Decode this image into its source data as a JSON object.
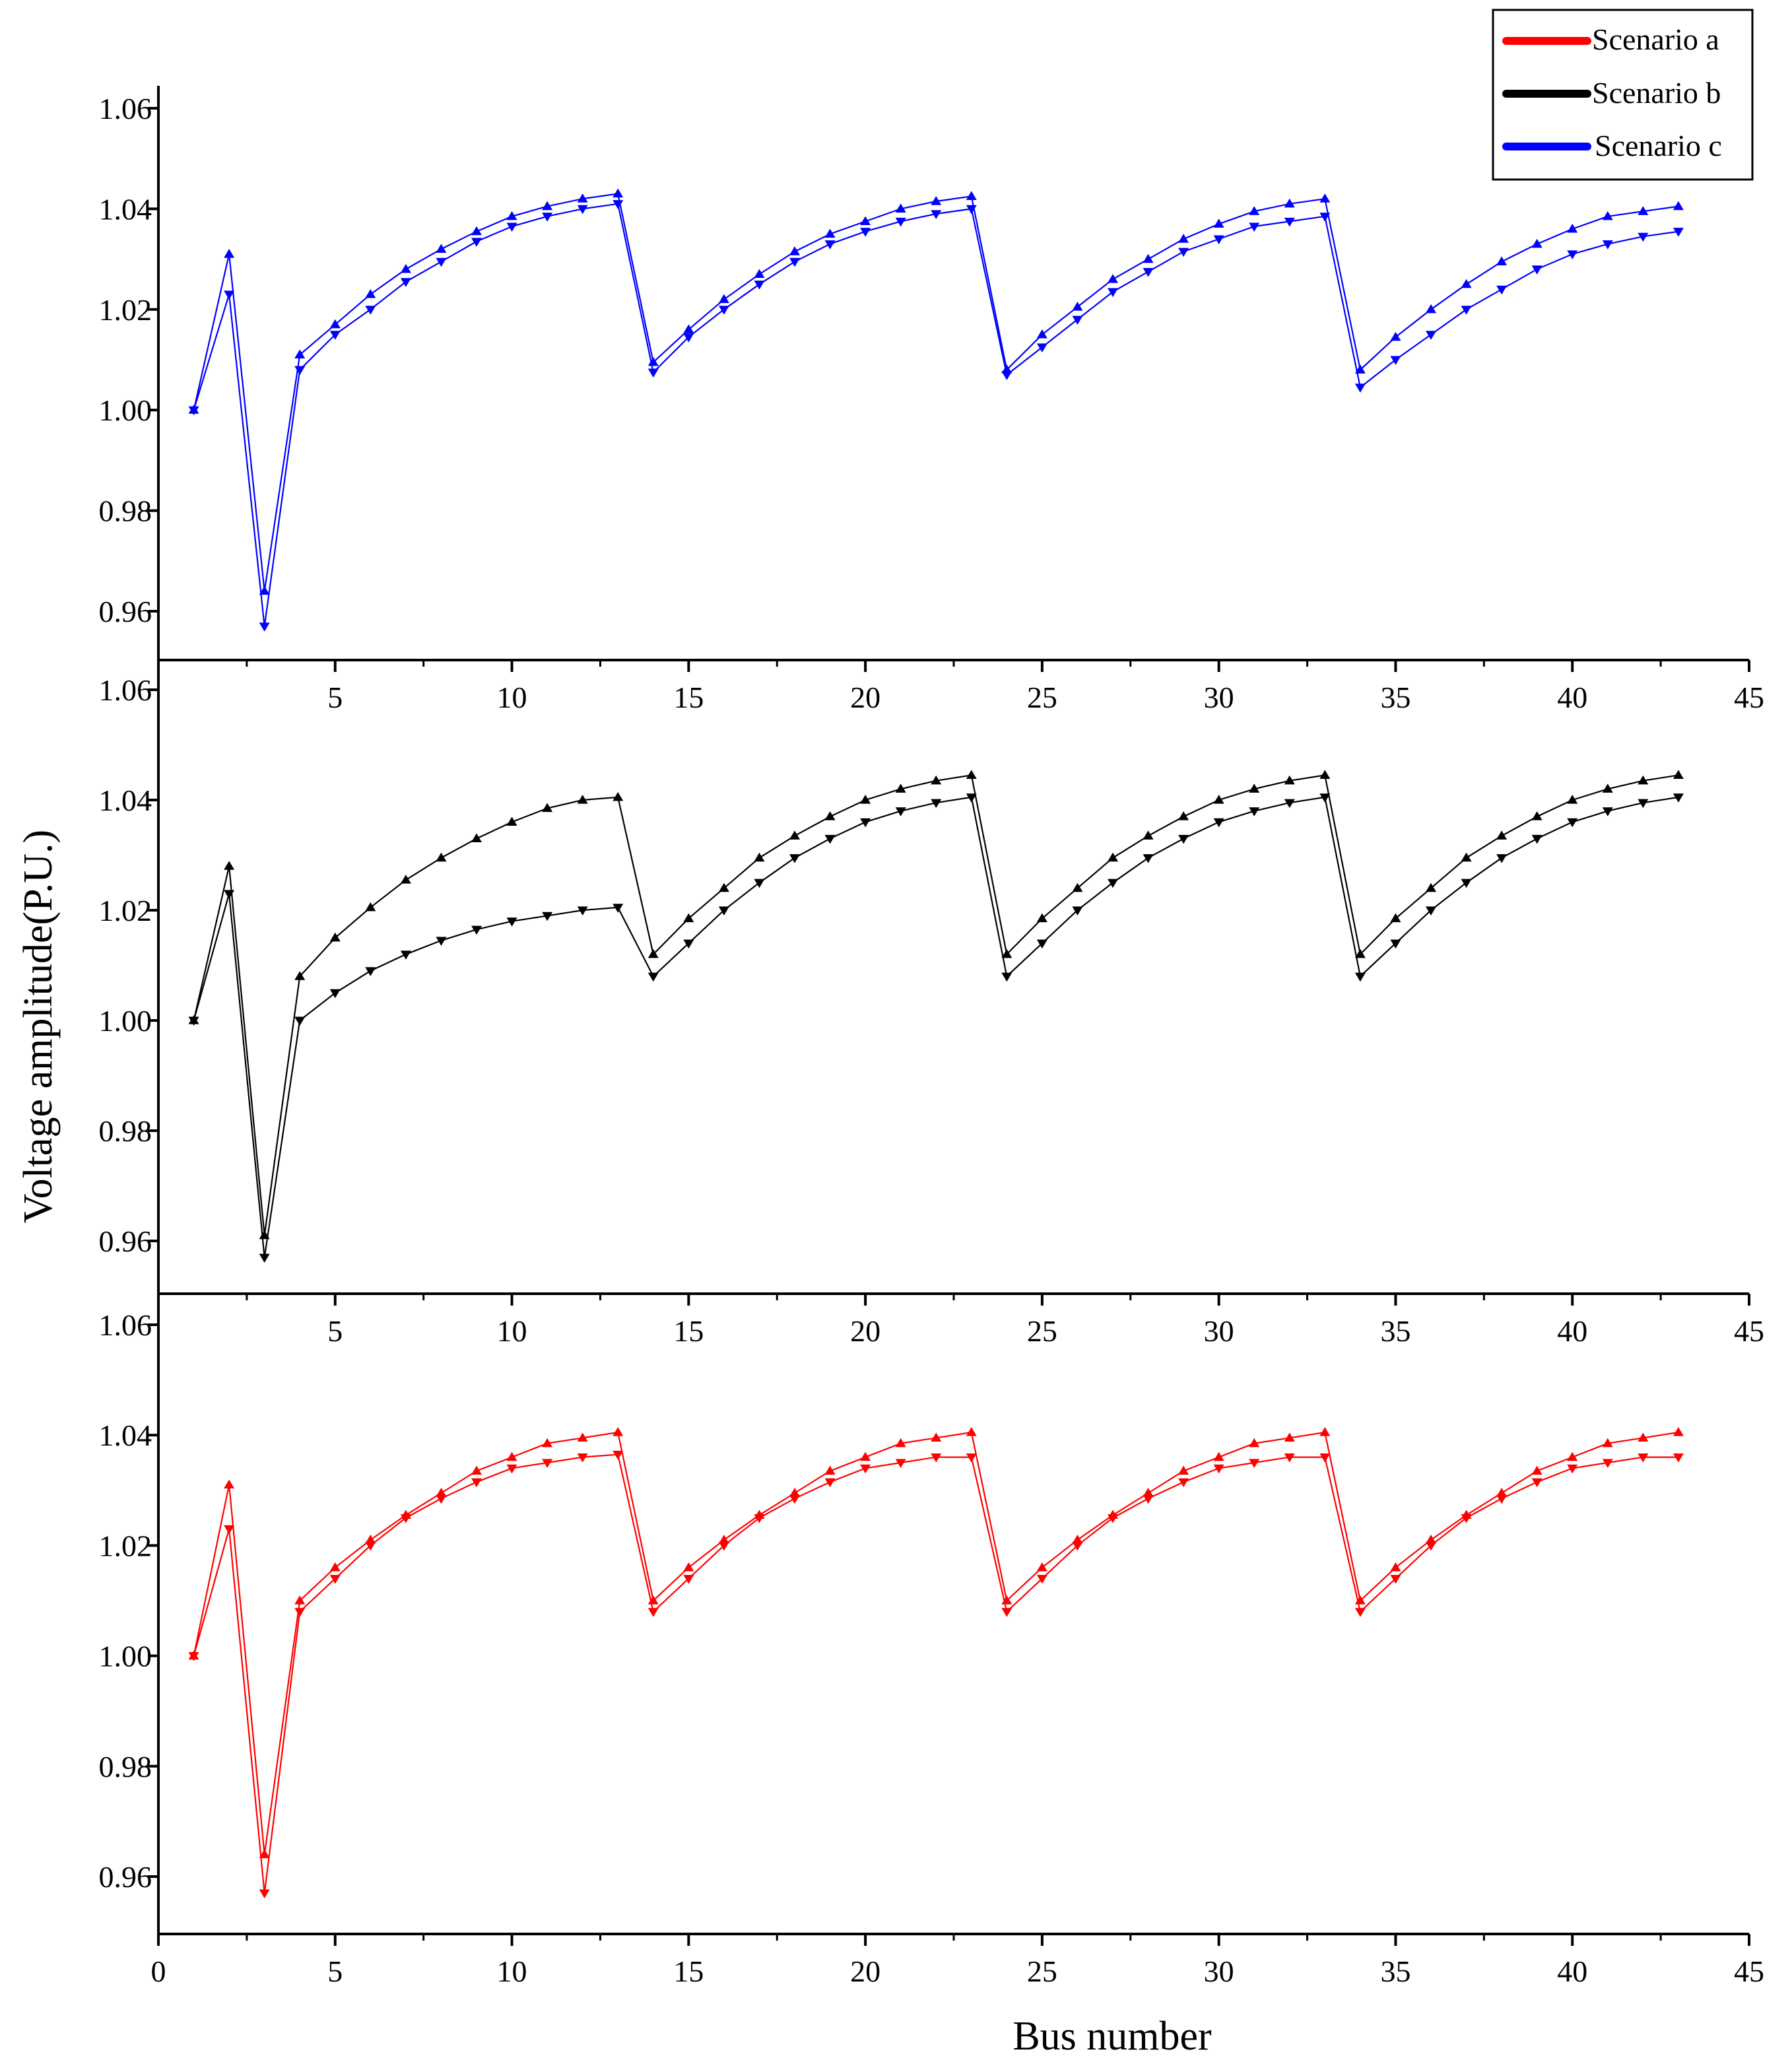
{
  "chart_data": {
    "type": "line",
    "title": "",
    "xlabel": "Bus number",
    "ylabel": "Voltage amplitude(P.U.)",
    "xlim": [
      0,
      45
    ],
    "ylim": [
      0.95,
      1.065
    ],
    "x_ticks": [
      5,
      10,
      15,
      20,
      25,
      30,
      35,
      40,
      45
    ],
    "x_ticks_bottom": [
      0,
      5,
      10,
      15,
      20,
      25,
      30,
      35,
      40,
      45
    ],
    "y_ticks": [
      0.96,
      0.98,
      1.0,
      1.02,
      1.04,
      1.06
    ],
    "y_tick_labels": [
      "0.96",
      "0.98",
      "1.00",
      "1.02",
      "1.04",
      "1.06"
    ],
    "legend": {
      "position": "top-right",
      "entries": [
        {
          "label": "Scenario a",
          "color": "#ff0000"
        },
        {
          "label": "Scenario b",
          "color": "#000000"
        },
        {
          "label": "Scenario c",
          "color": "#0000ff"
        }
      ]
    },
    "panels": [
      {
        "scenario": "c",
        "color": "#0000ff",
        "x": [
          1,
          2,
          3,
          4,
          5,
          6,
          7,
          8,
          9,
          10,
          11,
          12,
          13,
          14,
          15,
          16,
          17,
          18,
          19,
          20,
          21,
          22,
          23,
          24,
          25,
          26,
          27,
          28,
          29,
          30,
          31,
          32,
          33,
          34,
          35,
          36,
          37,
          38,
          39,
          40,
          41,
          42,
          43
        ],
        "series": [
          {
            "name": "upper",
            "marker": "triangle-up",
            "values": [
              1.0,
              1.031,
              0.964,
              1.011,
              1.017,
              1.023,
              1.028,
              1.032,
              1.0355,
              1.0385,
              1.0405,
              1.042,
              1.043,
              1.0095,
              1.016,
              1.022,
              1.027,
              1.0315,
              1.035,
              1.0375,
              1.04,
              1.0415,
              1.0425,
              1.008,
              1.015,
              1.0205,
              1.026,
              1.03,
              1.034,
              1.037,
              1.0395,
              1.041,
              1.042,
              1.008,
              1.0145,
              1.02,
              1.025,
              1.0295,
              1.033,
              1.036,
              1.0385,
              1.0395,
              1.0405
            ]
          },
          {
            "name": "lower",
            "marker": "triangle-down",
            "values": [
              1.0,
              1.023,
              0.957,
              1.008,
              1.015,
              1.02,
              1.0255,
              1.0295,
              1.0335,
              1.0365,
              1.0385,
              1.04,
              1.041,
              1.0075,
              1.0145,
              1.02,
              1.025,
              1.0295,
              1.033,
              1.0355,
              1.0375,
              1.039,
              1.04,
              1.007,
              1.0125,
              1.018,
              1.0235,
              1.0275,
              1.0315,
              1.034,
              1.0365,
              1.0375,
              1.0385,
              1.0045,
              1.01,
              1.015,
              1.02,
              1.024,
              1.028,
              1.031,
              1.033,
              1.0345,
              1.0355
            ]
          }
        ]
      },
      {
        "scenario": "b",
        "color": "#000000",
        "x": [
          1,
          2,
          3,
          4,
          5,
          6,
          7,
          8,
          9,
          10,
          11,
          12,
          13,
          14,
          15,
          16,
          17,
          18,
          19,
          20,
          21,
          22,
          23,
          24,
          25,
          26,
          27,
          28,
          29,
          30,
          31,
          32,
          33,
          34,
          35,
          36,
          37,
          38,
          39,
          40,
          41,
          42,
          43
        ],
        "series": [
          {
            "name": "upper",
            "marker": "triangle-up",
            "values": [
              1.0,
              1.028,
              0.961,
              1.008,
              1.015,
              1.0205,
              1.0255,
              1.0295,
              1.033,
              1.036,
              1.0385,
              1.04,
              1.0405,
              1.012,
              1.0185,
              1.024,
              1.0295,
              1.0335,
              1.037,
              1.04,
              1.042,
              1.0435,
              1.0445,
              1.012,
              1.0185,
              1.024,
              1.0295,
              1.0335,
              1.037,
              1.04,
              1.042,
              1.0435,
              1.0445,
              1.012,
              1.0185,
              1.024,
              1.0295,
              1.0335,
              1.037,
              1.04,
              1.042,
              1.0435,
              1.0445
            ]
          },
          {
            "name": "lower",
            "marker": "triangle-down",
            "values": [
              1.0,
              1.023,
              0.957,
              1.0,
              1.005,
              1.009,
              1.012,
              1.0145,
              1.0165,
              1.018,
              1.019,
              1.02,
              1.0205,
              1.008,
              1.014,
              1.02,
              1.025,
              1.0295,
              1.033,
              1.036,
              1.038,
              1.0395,
              1.0405,
              1.008,
              1.014,
              1.02,
              1.025,
              1.0295,
              1.033,
              1.036,
              1.038,
              1.0395,
              1.0405,
              1.008,
              1.014,
              1.02,
              1.025,
              1.0295,
              1.033,
              1.036,
              1.038,
              1.0395,
              1.0405
            ]
          }
        ]
      },
      {
        "scenario": "a",
        "color": "#ff0000",
        "x": [
          1,
          2,
          3,
          4,
          5,
          6,
          7,
          8,
          9,
          10,
          11,
          12,
          13,
          14,
          15,
          16,
          17,
          18,
          19,
          20,
          21,
          22,
          23,
          24,
          25,
          26,
          27,
          28,
          29,
          30,
          31,
          32,
          33,
          34,
          35,
          36,
          37,
          38,
          39,
          40,
          41,
          42,
          43
        ],
        "series": [
          {
            "name": "upper",
            "marker": "triangle-up",
            "values": [
              1.0,
              1.031,
              0.964,
              1.01,
              1.016,
              1.021,
              1.0255,
              1.0295,
              1.0335,
              1.036,
              1.0385,
              1.0395,
              1.0405,
              1.01,
              1.016,
              1.021,
              1.0255,
              1.0295,
              1.0335,
              1.036,
              1.0385,
              1.0395,
              1.0405,
              1.01,
              1.016,
              1.021,
              1.0255,
              1.0295,
              1.0335,
              1.036,
              1.0385,
              1.0395,
              1.0405,
              1.01,
              1.016,
              1.021,
              1.0255,
              1.0295,
              1.0335,
              1.036,
              1.0385,
              1.0395,
              1.0405
            ]
          },
          {
            "name": "lower",
            "marker": "triangle-down",
            "values": [
              1.0,
              1.023,
              0.957,
              1.008,
              1.014,
              1.02,
              1.025,
              1.0285,
              1.0315,
              1.034,
              1.035,
              1.036,
              1.0365,
              1.008,
              1.014,
              1.02,
              1.025,
              1.0285,
              1.0315,
              1.034,
              1.035,
              1.036,
              1.036,
              1.008,
              1.014,
              1.02,
              1.025,
              1.0285,
              1.0315,
              1.034,
              1.035,
              1.036,
              1.036,
              1.008,
              1.014,
              1.02,
              1.025,
              1.0285,
              1.0315,
              1.034,
              1.035,
              1.036,
              1.036
            ]
          }
        ]
      }
    ]
  }
}
